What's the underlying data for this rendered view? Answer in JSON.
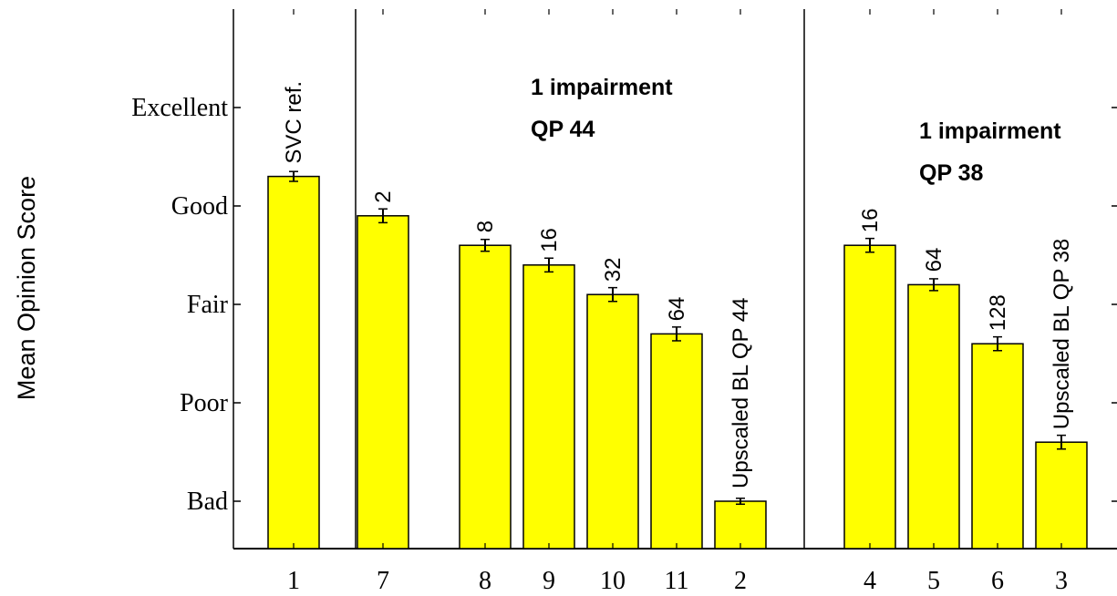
{
  "chart_data": {
    "type": "bar",
    "title": "",
    "xlabel": "",
    "ylabel": "Mean Opinion Score",
    "ylim": [
      0.5,
      5.5
    ],
    "y_tick_values": [
      1,
      2,
      3,
      4,
      5
    ],
    "y_tick_labels": [
      "Bad",
      "Poor",
      "Fair",
      "Good",
      "Excellent"
    ],
    "categories": [
      "1",
      "7",
      "8",
      "9",
      "10",
      "11",
      "2",
      "4",
      "5",
      "6",
      "3"
    ],
    "values": [
      4.3,
      3.9,
      3.6,
      3.4,
      3.1,
      2.7,
      1.0,
      3.6,
      3.2,
      2.6,
      1.6
    ],
    "errors": [
      0.05,
      0.07,
      0.06,
      0.07,
      0.07,
      0.07,
      0.03,
      0.07,
      0.06,
      0.07,
      0.07
    ],
    "bar_labels": [
      "SVC ref.",
      "2",
      "8",
      "16",
      "32",
      "64",
      "Upscaled BL QP 44",
      "16",
      "64",
      "128",
      "Upscaled BL QP 38"
    ],
    "group_annotations": [
      {
        "line1": "1 impairment",
        "line2": "QP 44"
      },
      {
        "line1": "1 impairment",
        "line2": "QP 38"
      }
    ],
    "bar_color": "#ffff00",
    "grid": false,
    "legend": "none"
  }
}
